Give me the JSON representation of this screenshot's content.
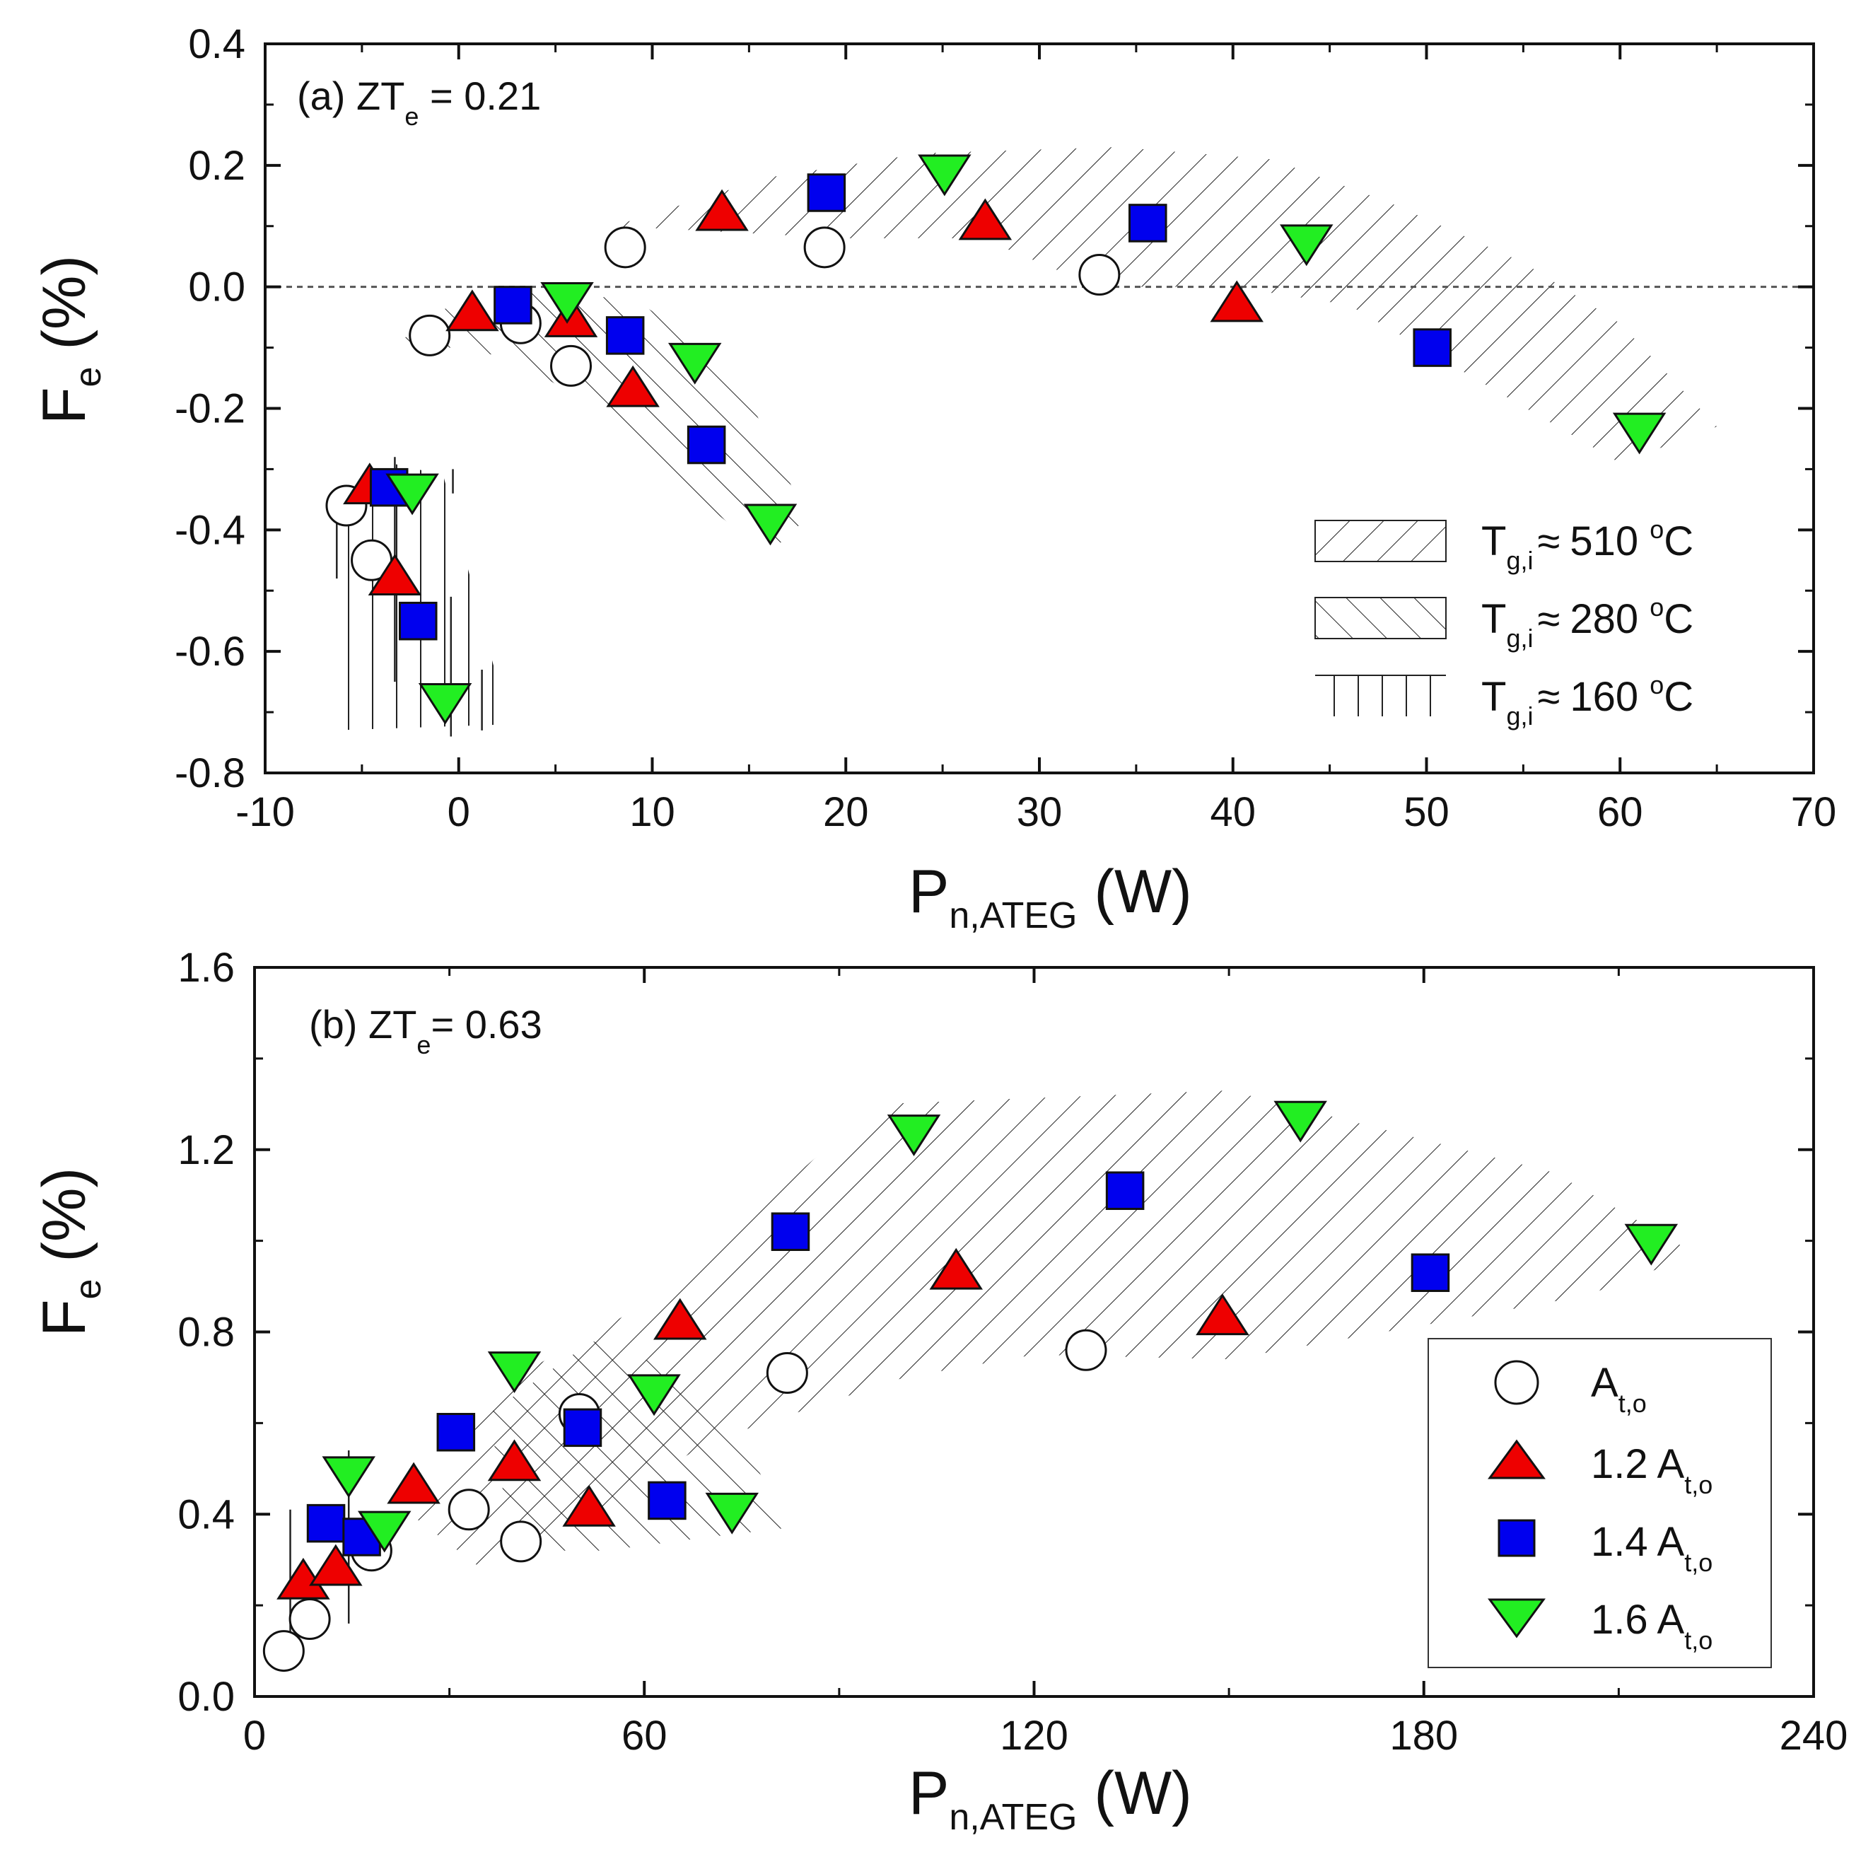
{
  "chart_data": [
    {
      "type": "scatter",
      "panel": "(a)",
      "title_prefix": "(a) ZT",
      "title_sub": "e",
      "title_suffix": " = 0.21",
      "xlabel_main": "P",
      "xlabel_sub": "n,ATEG",
      "xlabel_unit": " (W)",
      "ylabel_main": "F",
      "ylabel_sub": "e",
      "ylabel_unit": " (%)",
      "xlim": [
        -10,
        70
      ],
      "ylim": [
        -0.8,
        0.4
      ],
      "xticks": [
        -10,
        0,
        10,
        20,
        30,
        40,
        50,
        60,
        70
      ],
      "xtick_labels": [
        "-10",
        "0",
        "10",
        "20",
        "30",
        "40",
        "50",
        "60",
        "70"
      ],
      "yticks": [
        -0.8,
        -0.6,
        -0.4,
        -0.2,
        0.0,
        0.2,
        0.4
      ],
      "ytick_labels": [
        "-0.8",
        "-0.6",
        "-0.4",
        "-0.2",
        "0.0",
        "0.2",
        "0.4"
      ],
      "reference_line_y": 0.0,
      "series": [
        {
          "marker": "circle",
          "color": "#ffffff",
          "points": [
            {
              "x": -5.8,
              "y": -0.36
            },
            {
              "x": -4.5,
              "y": -0.45
            },
            {
              "x": -1.5,
              "y": -0.08
            },
            {
              "x": 3.2,
              "y": -0.06
            },
            {
              "x": 5.8,
              "y": -0.13
            },
            {
              "x": 8.6,
              "y": 0.065
            },
            {
              "x": 18.9,
              "y": 0.065
            },
            {
              "x": 33.1,
              "y": 0.02
            }
          ]
        },
        {
          "marker": "triangle-up",
          "color": "#ee0000",
          "points": [
            {
              "x": -4.6,
              "y": -0.33
            },
            {
              "x": -3.3,
              "y": -0.48
            },
            {
              "x": 0.7,
              "y": -0.045
            },
            {
              "x": 5.8,
              "y": -0.055
            },
            {
              "x": 9.0,
              "y": -0.17
            },
            {
              "x": 13.6,
              "y": 0.12
            },
            {
              "x": 27.2,
              "y": 0.105
            },
            {
              "x": 40.2,
              "y": -0.03
            }
          ]
        },
        {
          "marker": "square",
          "color": "#0000ee",
          "points": [
            {
              "x": -3.6,
              "y": -0.33
            },
            {
              "x": -2.1,
              "y": -0.55
            },
            {
              "x": 2.8,
              "y": -0.03
            },
            {
              "x": 8.6,
              "y": -0.08
            },
            {
              "x": 12.8,
              "y": -0.26
            },
            {
              "x": 19.0,
              "y": 0.155
            },
            {
              "x": 35.6,
              "y": 0.105
            },
            {
              "x": 50.3,
              "y": -0.1
            }
          ]
        },
        {
          "marker": "triangle-down",
          "color": "#22ee22",
          "points": [
            {
              "x": -2.4,
              "y": -0.335
            },
            {
              "x": -0.7,
              "y": -0.68
            },
            {
              "x": 5.6,
              "y": -0.02
            },
            {
              "x": 12.2,
              "y": -0.12
            },
            {
              "x": 16.1,
              "y": -0.385
            },
            {
              "x": 25.1,
              "y": 0.19
            },
            {
              "x": 43.8,
              "y": 0.075
            },
            {
              "x": 61.0,
              "y": -0.235
            }
          ]
        }
      ],
      "error_bars": [
        {
          "x": -6.3,
          "y_low": -0.48,
          "y_high": -0.34
        },
        {
          "x": -3.3,
          "y_low": -0.65,
          "y_high": -0.28
        },
        {
          "x": -0.4,
          "y_low": -0.74,
          "y_high": -0.51
        },
        {
          "x": -0.3,
          "y_low": -0.34,
          "y_high": -0.3
        },
        {
          "x": 1.2,
          "y_low": -0.73,
          "y_high": -0.63
        }
      ],
      "bands": [
        {
          "name": "510",
          "hatch": "backslash",
          "polygon": [
            [
              8,
              0.1
            ],
            [
              16,
              0.18
            ],
            [
              24,
              0.22
            ],
            [
              34,
              0.23
            ],
            [
              42,
              0.21
            ],
            [
              48,
              0.14
            ],
            [
              55,
              0.04
            ],
            [
              60,
              -0.06
            ],
            [
              65,
              -0.23
            ],
            [
              60,
              -0.29
            ],
            [
              53,
              -0.16
            ],
            [
              46,
              -0.03
            ],
            [
              40,
              0.0
            ],
            [
              33,
              0.0
            ],
            [
              27,
              0.08
            ],
            [
              20,
              0.08
            ],
            [
              14,
              0.09
            ]
          ]
        },
        {
          "name": "280",
          "hatch": "slash",
          "polygon": [
            [
              -3.5,
              -0.1
            ],
            [
              0,
              -0.02
            ],
            [
              4,
              -0.01
            ],
            [
              9,
              -0.02
            ],
            [
              14,
              -0.12
            ],
            [
              18,
              -0.38
            ],
            [
              16,
              -0.44
            ],
            [
              12,
              -0.34
            ],
            [
              7,
              -0.2
            ],
            [
              3,
              -0.12
            ],
            [
              0,
              -0.1
            ]
          ]
        },
        {
          "name": "160",
          "hatch": "vertical",
          "polygon": [
            [
              -6.5,
              -0.73
            ],
            [
              -6.5,
              -0.34
            ],
            [
              -3.5,
              -0.29
            ],
            [
              -0.8,
              -0.31
            ],
            [
              2.6,
              -0.72
            ]
          ]
        }
      ],
      "legend": {
        "position": "bottom-right",
        "entries": [
          {
            "hatch": "backslash",
            "label_main": "T",
            "label_sub": "g,i",
            "label_approx": "≈",
            "label_value": "510 ",
            "label_sup": "o",
            "label_unit": "C"
          },
          {
            "hatch": "slash",
            "label_main": "T",
            "label_sub": "g,i",
            "label_approx": "≈",
            "label_value": "280 ",
            "label_sup": "o",
            "label_unit": "C"
          },
          {
            "hatch": "vertical",
            "label_main": "T",
            "label_sub": "g,i",
            "label_approx": "≈",
            "label_value": "160 ",
            "label_sup": "o",
            "label_unit": "C"
          }
        ]
      }
    },
    {
      "type": "scatter",
      "panel": "(b)",
      "title_prefix": "(b) ZT",
      "title_sub": "e",
      "title_suffix": "= 0.63",
      "xlabel_main": "P",
      "xlabel_sub": "n,ATEG",
      "xlabel_unit": " (W)",
      "ylabel_main": "F",
      "ylabel_sub": "e",
      "ylabel_unit": " (%)",
      "xlim": [
        0,
        240
      ],
      "ylim": [
        0.0,
        1.6
      ],
      "xticks": [
        0,
        60,
        120,
        180,
        240
      ],
      "xtick_labels": [
        "0",
        "60",
        "120",
        "180",
        "240"
      ],
      "yticks": [
        0.0,
        0.4,
        0.8,
        1.2,
        1.6
      ],
      "ytick_labels": [
        "0.0",
        "0.4",
        "0.8",
        "1.2",
        "1.6"
      ],
      "series": [
        {
          "name_main": "A",
          "name_prefix": "",
          "name_sub": "t,o",
          "marker": "circle",
          "color": "#ffffff",
          "points": [
            {
              "x": 4.5,
              "y": 0.1
            },
            {
              "x": 8.5,
              "y": 0.17
            },
            {
              "x": 18,
              "y": 0.32
            },
            {
              "x": 33,
              "y": 0.41
            },
            {
              "x": 41,
              "y": 0.34
            },
            {
              "x": 50,
              "y": 0.62
            },
            {
              "x": 82,
              "y": 0.71
            },
            {
              "x": 128,
              "y": 0.76
            }
          ]
        },
        {
          "name_main": "A",
          "name_prefix": "1.2 ",
          "name_sub": "t,o",
          "marker": "triangle-up",
          "color": "#ee0000",
          "points": [
            {
              "x": 7.5,
              "y": 0.25
            },
            {
              "x": 12.5,
              "y": 0.28
            },
            {
              "x": 24.5,
              "y": 0.46
            },
            {
              "x": 40,
              "y": 0.51
            },
            {
              "x": 51.5,
              "y": 0.41
            },
            {
              "x": 65.5,
              "y": 0.82
            },
            {
              "x": 108,
              "y": 0.93
            },
            {
              "x": 149,
              "y": 0.83
            }
          ]
        },
        {
          "name_main": "A",
          "name_prefix": "1.4 ",
          "name_sub": "t,o",
          "marker": "square",
          "color": "#0000ee",
          "points": [
            {
              "x": 11,
              "y": 0.38
            },
            {
              "x": 16.5,
              "y": 0.35
            },
            {
              "x": 31,
              "y": 0.58
            },
            {
              "x": 50.5,
              "y": 0.59
            },
            {
              "x": 63.5,
              "y": 0.43
            },
            {
              "x": 82.5,
              "y": 1.02
            },
            {
              "x": 134,
              "y": 1.11
            },
            {
              "x": 181,
              "y": 0.93
            }
          ]
        },
        {
          "name_main": "A",
          "name_prefix": "1.6 ",
          "name_sub": "t,o",
          "marker": "triangle-down",
          "color": "#22ee22",
          "points": [
            {
              "x": 14.5,
              "y": 0.49
            },
            {
              "x": 20,
              "y": 0.37
            },
            {
              "x": 40,
              "y": 0.72
            },
            {
              "x": 61.5,
              "y": 0.67
            },
            {
              "x": 73.5,
              "y": 0.41
            },
            {
              "x": 101.5,
              "y": 1.24
            },
            {
              "x": 161,
              "y": 1.27
            },
            {
              "x": 215,
              "y": 1.0
            }
          ]
        }
      ],
      "error_bars": [
        {
          "x": 5.5,
          "y_low": 0.06,
          "y_high": 0.41
        },
        {
          "x": 14.5,
          "y_low": 0.16,
          "y_high": 0.54
        },
        {
          "x": 19,
          "y_low": 0.28,
          "y_high": 0.38
        }
      ],
      "bands": [
        {
          "name": "510",
          "hatch": "backslash",
          "polygon": [
            [
              24,
              0.4
            ],
            [
              40,
              0.7
            ],
            [
              60,
              0.86
            ],
            [
              78,
              1.08
            ],
            [
              96,
              1.3
            ],
            [
              150,
              1.33
            ],
            [
              200,
              1.15
            ],
            [
              222,
              0.97
            ],
            [
              205,
              0.88
            ],
            [
              182,
              0.82
            ],
            [
              150,
              0.74
            ],
            [
              120,
              0.75
            ],
            [
              100,
              0.7
            ],
            [
              70,
              0.56
            ],
            [
              50,
              0.38
            ],
            [
              35,
              0.28
            ]
          ]
        },
        {
          "name": "280",
          "hatch": "slash",
          "polygon": [
            [
              36,
              0.62
            ],
            [
              52,
              0.78
            ],
            [
              62,
              0.73
            ],
            [
              75,
              0.57
            ],
            [
              82,
              0.37
            ],
            [
              70,
              0.35
            ],
            [
              54,
              0.32
            ],
            [
              40,
              0.32
            ]
          ]
        }
      ],
      "legend": {
        "position": "bottom-right"
      }
    }
  ]
}
